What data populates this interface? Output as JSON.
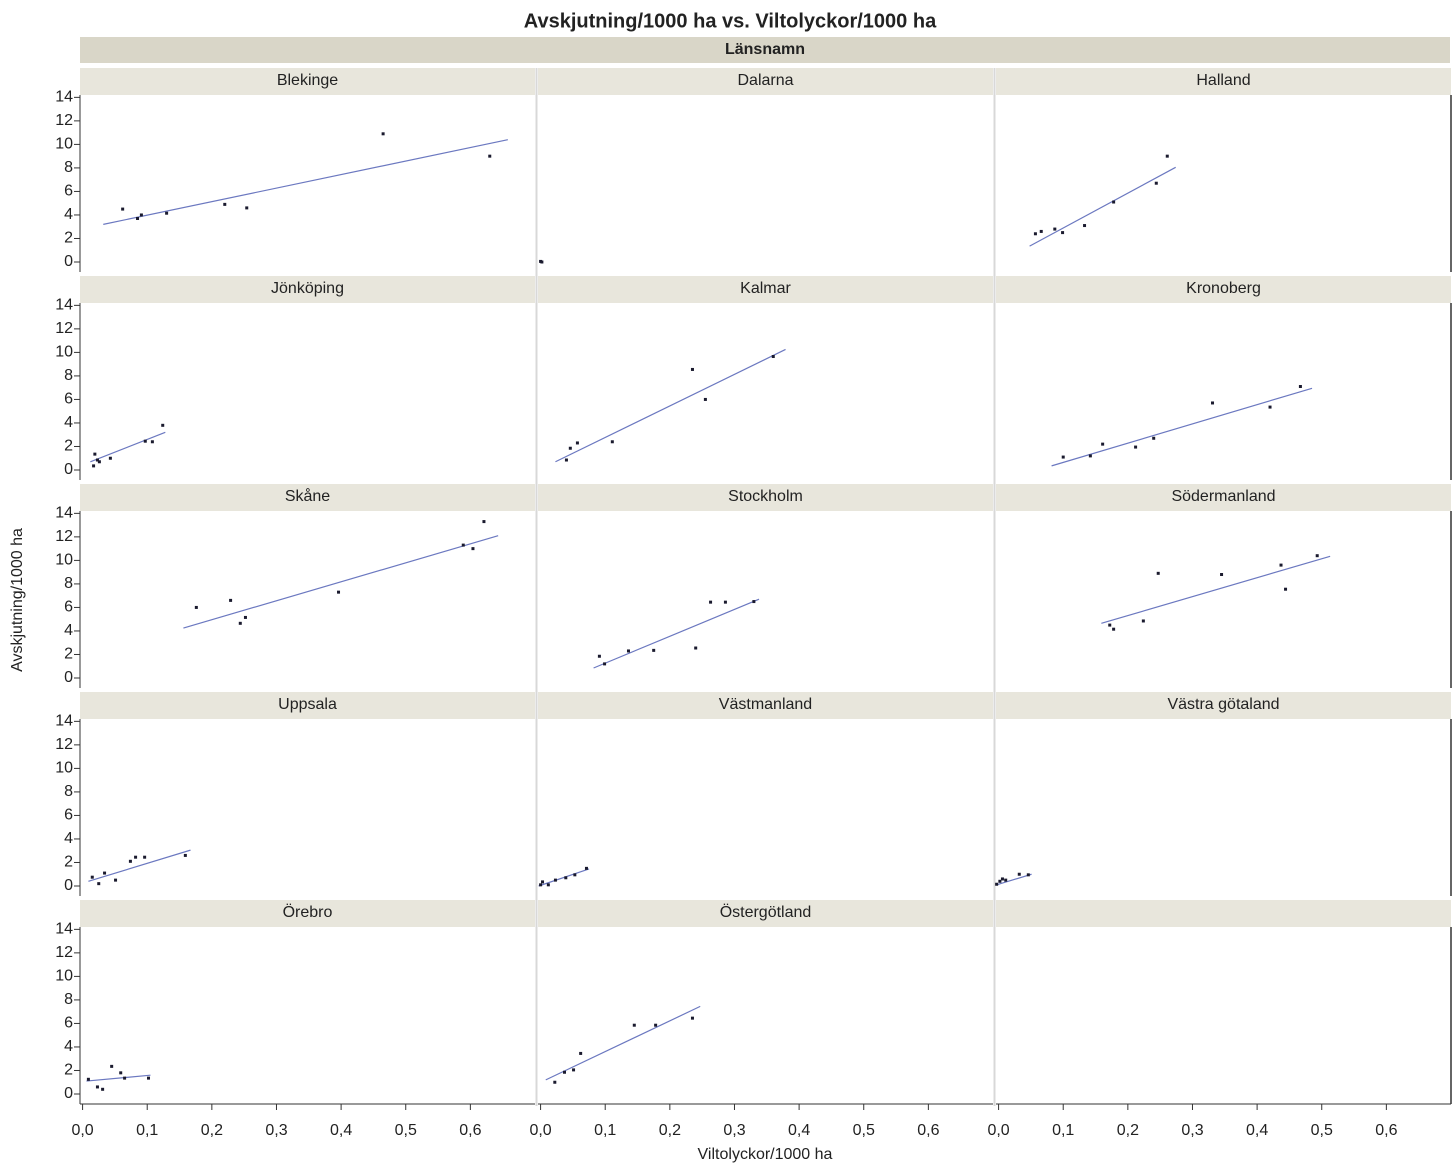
{
  "chart_data": {
    "type": "scatter",
    "title": "Avskjutning/1000 ha vs. Viltolyckor/1000 ha",
    "facet_label": "Länsnamn",
    "x_label": "Viltolyckor/1000 ha",
    "y_label": "Avskjutning/1000 ha",
    "xlim": [
      -0.004,
      0.7
    ],
    "xticks": [
      {
        "value": 0,
        "label": "0,0"
      },
      {
        "value": 0.1,
        "label": "0,1"
      },
      {
        "value": 0.2,
        "label": "0,2"
      },
      {
        "value": 0.3,
        "label": "0,3"
      },
      {
        "value": 0.4,
        "label": "0,4"
      },
      {
        "value": 0.5,
        "label": "0,5"
      },
      {
        "value": 0.6,
        "label": "0,6"
      }
    ],
    "ylim": [
      -0.85,
      14.2
    ],
    "yticks": [
      0,
      2,
      4,
      6,
      8,
      10,
      12,
      14
    ],
    "point_color": "#1a1a2e",
    "line_color": "#6b78c0",
    "panels": [
      {
        "name": "Blekinge",
        "x": [
          0.062,
          0.085,
          0.091,
          0.13,
          0.22,
          0.254,
          0.465,
          0.63
        ],
        "y": [
          4.5,
          3.7,
          4.0,
          4.15,
          4.9,
          4.6,
          10.9,
          9.0
        ],
        "fit_x": [
          0.032,
          0.658
        ],
        "fit_y": [
          3.2,
          10.4
        ]
      },
      {
        "name": "Dalarna",
        "x": [
          0.0,
          0.002
        ],
        "y": [
          0.05,
          0.0
        ]
      },
      {
        "name": "Halland",
        "x": [
          0.057,
          0.066,
          0.087,
          0.099,
          0.133,
          0.178,
          0.244,
          0.261
        ],
        "y": [
          2.4,
          2.6,
          2.8,
          2.5,
          3.1,
          5.1,
          6.7,
          9.0
        ],
        "fit_x": [
          0.048,
          0.274
        ],
        "fit_y": [
          1.35,
          8.05
        ]
      },
      {
        "name": "Jönköping",
        "x": [
          0.017,
          0.019,
          0.023,
          0.026,
          0.043,
          0.097,
          0.108,
          0.124
        ],
        "y": [
          0.35,
          1.35,
          0.85,
          0.7,
          1.0,
          2.45,
          2.4,
          3.8
        ],
        "fit_x": [
          0.012,
          0.128
        ],
        "fit_y": [
          0.7,
          3.2
        ]
      },
      {
        "name": "Kalmar",
        "x": [
          0.04,
          0.046,
          0.057,
          0.111,
          0.235,
          0.255,
          0.36
        ],
        "y": [
          0.85,
          1.85,
          2.3,
          2.4,
          8.55,
          6.0,
          9.65
        ],
        "fit_x": [
          0.023,
          0.379
        ],
        "fit_y": [
          0.7,
          10.25
        ]
      },
      {
        "name": "Kronoberg",
        "x": [
          0.1,
          0.142,
          0.161,
          0.212,
          0.24,
          0.331,
          0.42,
          0.467
        ],
        "y": [
          1.1,
          1.2,
          2.2,
          1.95,
          2.7,
          5.7,
          5.35,
          7.1
        ],
        "fit_x": [
          0.082,
          0.485
        ],
        "fit_y": [
          0.35,
          6.95
        ]
      },
      {
        "name": "Skåne",
        "x": [
          0.176,
          0.229,
          0.244,
          0.252,
          0.396,
          0.589,
          0.604,
          0.621
        ],
        "y": [
          6.0,
          6.6,
          4.65,
          5.15,
          7.3,
          11.3,
          11.0,
          13.3
        ],
        "fit_x": [
          0.156,
          0.643
        ],
        "fit_y": [
          4.25,
          12.1
        ]
      },
      {
        "name": "Stockholm",
        "x": [
          0.091,
          0.099,
          0.136,
          0.175,
          0.24,
          0.263,
          0.286,
          0.33
        ],
        "y": [
          1.85,
          1.2,
          2.3,
          2.35,
          2.55,
          6.45,
          6.45,
          6.5
        ],
        "fit_x": [
          0.082,
          0.338
        ],
        "fit_y": [
          0.85,
          6.7
        ]
      },
      {
        "name": "Södermanland",
        "x": [
          0.172,
          0.178,
          0.224,
          0.247,
          0.345,
          0.437,
          0.444,
          0.493
        ],
        "y": [
          4.5,
          4.15,
          4.85,
          8.9,
          8.8,
          9.6,
          7.55,
          10.4
        ],
        "fit_x": [
          0.159,
          0.513
        ],
        "fit_y": [
          4.65,
          10.35
        ]
      },
      {
        "name": "Uppsala",
        "x": [
          0.015,
          0.025,
          0.034,
          0.051,
          0.074,
          0.082,
          0.096,
          0.159
        ],
        "y": [
          0.75,
          0.2,
          1.1,
          0.5,
          2.1,
          2.45,
          2.45,
          2.6
        ],
        "fit_x": [
          0.009,
          0.167
        ],
        "fit_y": [
          0.4,
          3.05
        ]
      },
      {
        "name": "Västmanland",
        "x": [
          0.0,
          0.003,
          0.012,
          0.023,
          0.039,
          0.053,
          0.071
        ],
        "y": [
          0.1,
          0.35,
          0.1,
          0.5,
          0.7,
          0.95,
          1.5
        ],
        "fit_x": [
          -0.003,
          0.075
        ],
        "fit_y": [
          0.0,
          1.45
        ]
      },
      {
        "name": "Västra götaland",
        "x": [
          -0.003,
          0.002,
          0.006,
          0.011,
          0.032,
          0.046
        ],
        "y": [
          0.15,
          0.4,
          0.6,
          0.5,
          1.0,
          0.95
        ],
        "fit_x": [
          -0.003,
          0.051
        ],
        "fit_y": [
          0.1,
          1.0
        ]
      },
      {
        "name": "Örebro",
        "x": [
          0.009,
          0.023,
          0.031,
          0.045,
          0.059,
          0.065,
          0.102
        ],
        "y": [
          1.25,
          0.6,
          0.4,
          2.35,
          1.8,
          1.35,
          1.35
        ],
        "fit_x": [
          0.006,
          0.105
        ],
        "fit_y": [
          1.1,
          1.6
        ]
      },
      {
        "name": "Östergötland",
        "x": [
          0.022,
          0.037,
          0.051,
          0.062,
          0.145,
          0.178,
          0.235
        ],
        "y": [
          1.0,
          1.85,
          2.05,
          3.45,
          5.85,
          5.85,
          6.45
        ],
        "fit_x": [
          0.008,
          0.247
        ],
        "fit_y": [
          1.2,
          7.45
        ]
      }
    ]
  }
}
